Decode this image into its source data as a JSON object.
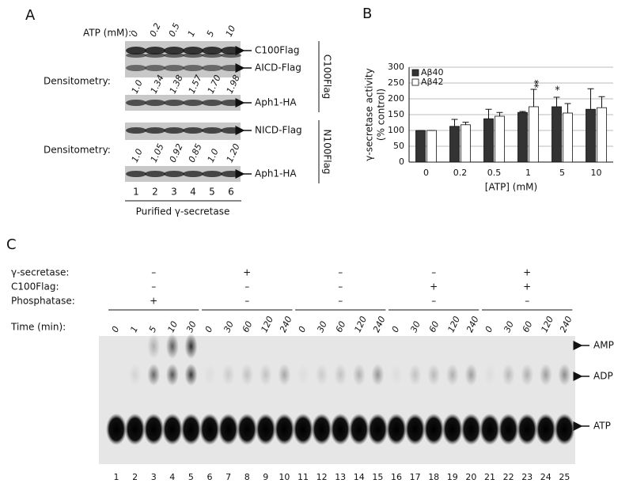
{
  "panel_a": {
    "label": "A",
    "atp_label": "ATP (mM):",
    "atp_values": [
      "0",
      "0.2",
      "0.5",
      "1",
      "5",
      "10"
    ],
    "bands_top": [
      "C100Flag",
      "AICD-Flag",
      "Aph1-HA"
    ],
    "densitometry_label": "Densitometry:",
    "densitometry_c100": [
      "1.0",
      "1.34",
      "1.38",
      "1.57",
      "1.70",
      "1.98"
    ],
    "group_c100": "C100Flag",
    "bands_bottom": [
      "NICD-Flag",
      "Aph1-HA"
    ],
    "densitometry_n100": [
      "1.0",
      "1.05",
      "0.92",
      "0.85",
      "1.0",
      "1.20"
    ],
    "group_n100": "N100Flag",
    "lanes": [
      "1",
      "2",
      "3",
      "4",
      "5",
      "6"
    ],
    "footer": "Purified γ-secretase"
  },
  "chart_data": {
    "type": "bar",
    "panel_label": "B",
    "ylabel": [
      "γ-secretase activity",
      "(% control)"
    ],
    "xlabel": "[ATP] (mM)",
    "categories": [
      "0",
      "0.2",
      "0.5",
      "1",
      "5",
      "10"
    ],
    "series": [
      {
        "name": "Aβ40",
        "color": "#333333",
        "values": [
          100,
          113,
          137,
          157,
          175,
          167
        ],
        "errors": [
          0,
          22,
          30,
          3,
          30,
          65
        ]
      },
      {
        "name": "Aβ42",
        "color": "#ffffff",
        "values": [
          100,
          118,
          145,
          175,
          155,
          172
        ],
        "errors": [
          0,
          8,
          12,
          55,
          30,
          35
        ]
      }
    ],
    "annotations": [
      {
        "label": "**",
        "series": "Aβ42",
        "category": "1"
      },
      {
        "label": "*",
        "series": "Aβ40",
        "category": "5"
      }
    ],
    "ylim": [
      0,
      300
    ],
    "yticks": [
      0,
      50,
      100,
      150,
      200,
      250,
      300
    ],
    "grid": true,
    "legend": "upper left"
  },
  "panel_c": {
    "label": "C",
    "conditions": [
      {
        "name": "γ-secretase:",
        "marks": [
          "–",
          "+",
          "–",
          "–",
          "+"
        ]
      },
      {
        "name": "C100Flag:",
        "marks": [
          "–",
          "–",
          "–",
          "+",
          "+"
        ]
      },
      {
        "name": "Phosphatase:",
        "marks": [
          "+",
          "–",
          "–",
          "–",
          "–"
        ]
      }
    ],
    "time_label": "Time (min):",
    "times": [
      [
        "0",
        "1",
        "5",
        "10",
        "30"
      ],
      [
        "0",
        "30",
        "60",
        "120",
        "240"
      ],
      [
        "0",
        "30",
        "60",
        "120",
        "240"
      ],
      [
        "0",
        "30",
        "60",
        "120",
        "240"
      ],
      [
        "0",
        "30",
        "60",
        "120",
        "240"
      ]
    ],
    "spots": [
      "AMP",
      "ADP",
      "ATP"
    ],
    "lanes": [
      "1",
      "2",
      "3",
      "4",
      "5",
      "6",
      "7",
      "8",
      "9",
      "10",
      "11",
      "12",
      "13",
      "14",
      "15",
      "16",
      "17",
      "18",
      "19",
      "20",
      "21",
      "22",
      "23",
      "24",
      "25"
    ]
  }
}
